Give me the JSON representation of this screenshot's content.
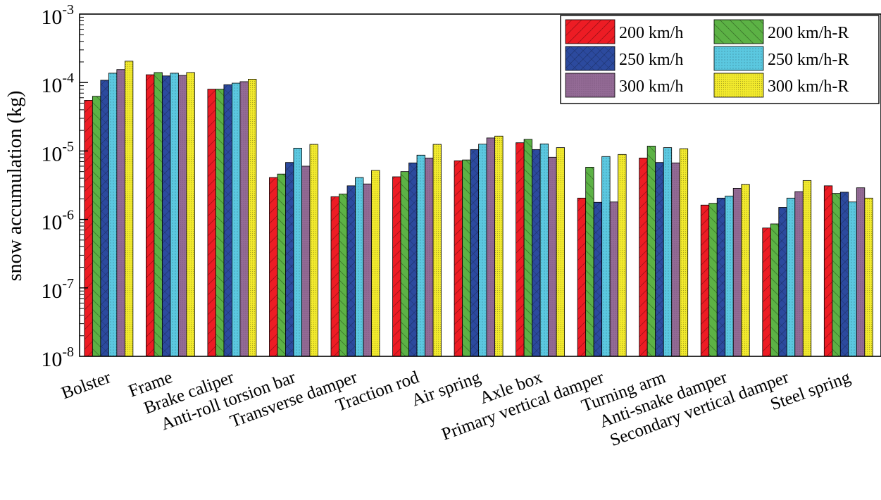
{
  "chart_data": {
    "type": "bar",
    "title": "",
    "xlabel": "",
    "ylabel": "snow accumulation (kg)",
    "yscale": "log",
    "ylim": [
      1e-08,
      0.001
    ],
    "yticks": [
      {
        "base": "10",
        "exp": "-3",
        "value": 0.001
      },
      {
        "base": "10",
        "exp": "-4",
        "value": 0.0001
      },
      {
        "base": "10",
        "exp": "-5",
        "value": 1e-05
      },
      {
        "base": "10",
        "exp": "-6",
        "value": 1e-06
      },
      {
        "base": "10",
        "exp": "-7",
        "value": 1e-07
      },
      {
        "base": "10",
        "exp": "-8",
        "value": 1e-08
      }
    ],
    "legend_position": "top-right",
    "categories": [
      "Bolster",
      "Frame",
      "Brake caliper",
      "Anti-roll torsion bar",
      "Transverse damper",
      "Traction rod",
      "Air spring",
      "Axle box",
      "Primary vertical damper",
      "Turning arm",
      "Anti-snake damper",
      "Secondary vertical damper",
      "Steel spring"
    ],
    "series": [
      {
        "name": "200 km/h",
        "color": "#ed1c24",
        "pattern": "diag-forward",
        "values": [
          5.5e-05,
          0.00013,
          8e-05,
          4.1e-06,
          2.15e-06,
          4.2e-06,
          7.2e-06,
          1.32e-05,
          2.05e-06,
          7.9e-06,
          1.62e-06,
          7.5e-07,
          3.1e-06
        ]
      },
      {
        "name": "200 km/h-R",
        "color": "#5cb245",
        "pattern": "diag-back",
        "values": [
          6.3e-05,
          0.00014,
          8e-05,
          4.6e-06,
          2.35e-06,
          5e-06,
          7.4e-06,
          1.48e-05,
          5.8e-06,
          1.18e-05,
          1.72e-06,
          8.6e-07,
          2.4e-06
        ]
      },
      {
        "name": "250 km/h",
        "color": "#2c4a9e",
        "pattern": "cross",
        "values": [
          0.000108,
          0.000125,
          9.3e-05,
          6.8e-06,
          3.1e-06,
          6.7e-06,
          1.05e-05,
          1.05e-05,
          1.78e-06,
          6.8e-06,
          2.05e-06,
          1.5e-06,
          2.5e-06
        ]
      },
      {
        "name": "250 km/h-R",
        "color": "#5bc8e0",
        "pattern": "dots",
        "values": [
          0.000137,
          0.000137,
          9.8e-05,
          1.1e-05,
          4.1e-06,
          8.7e-06,
          1.26e-05,
          1.27e-05,
          8.3e-06,
          1.12e-05,
          2.2e-06,
          2.05e-06,
          1.8e-06
        ]
      },
      {
        "name": "300 km/h",
        "color": "#946b96",
        "pattern": "fine-dots",
        "values": [
          0.000155,
          0.000127,
          0.000103,
          6e-06,
          3.3e-06,
          7.9e-06,
          1.55e-05,
          8.1e-06,
          1.8e-06,
          6.7e-06,
          2.85e-06,
          2.55e-06,
          2.9e-06
        ]
      },
      {
        "name": "300 km/h-R",
        "color": "#f2ea2d",
        "pattern": "dense-dots",
        "values": [
          0.000205,
          0.00014,
          0.000112,
          1.25e-05,
          5.2e-06,
          1.25e-05,
          1.65e-05,
          1.12e-05,
          8.9e-06,
          1.08e-05,
          3.25e-06,
          3.7e-06,
          2.05e-06
        ]
      }
    ]
  }
}
